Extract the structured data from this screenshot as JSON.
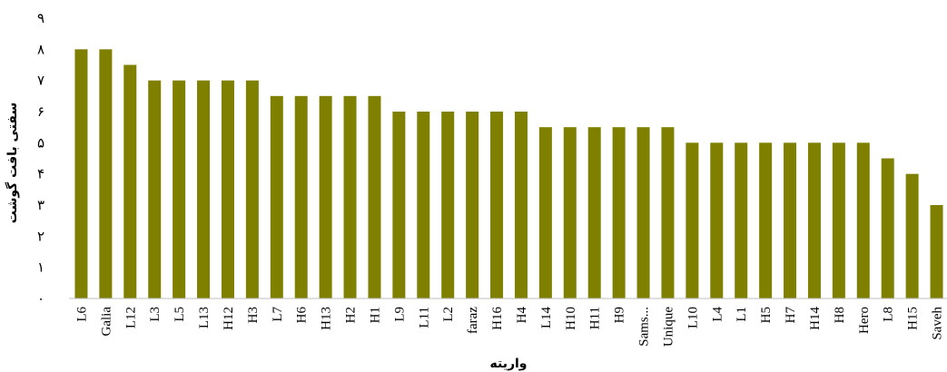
{
  "chart_data": {
    "type": "bar",
    "xlabel": "واریته",
    "ylabel": "سفتی بافت گوشت",
    "ylim": [
      0,
      9
    ],
    "yticks": [
      "۰",
      "۱",
      "۲",
      "۳",
      "۴",
      "۵",
      "۶",
      "۷",
      "۸",
      "۹"
    ],
    "categories": [
      "L6",
      "Galia",
      "L12",
      "L3",
      "L5",
      "L13",
      "H12",
      "H3",
      "L7",
      "H6",
      "H13",
      "H2",
      "H1",
      "L9",
      "L11",
      "L2",
      "faraz",
      "H16",
      "H4",
      "L14",
      "H10",
      "H11",
      "H9",
      "Sams...",
      "Unique",
      "L10",
      "L4",
      "L1",
      "H5",
      "H7",
      "H14",
      "H8",
      "Hero",
      "L8",
      "H15",
      "Saveh"
    ],
    "values": [
      8,
      8,
      7.5,
      7,
      7,
      7,
      7,
      7,
      6.5,
      6.5,
      6.5,
      6.5,
      6.5,
      6,
      6,
      6,
      6,
      6,
      6,
      5.5,
      5.5,
      5.5,
      5.5,
      5.5,
      5.5,
      5,
      5,
      5,
      5,
      5,
      5,
      5,
      5,
      4.5,
      4,
      3
    ],
    "grid": false,
    "legend": "none"
  },
  "colors": {
    "bar": "#808000",
    "axis": "#bfbfbf",
    "text": "#000000"
  }
}
